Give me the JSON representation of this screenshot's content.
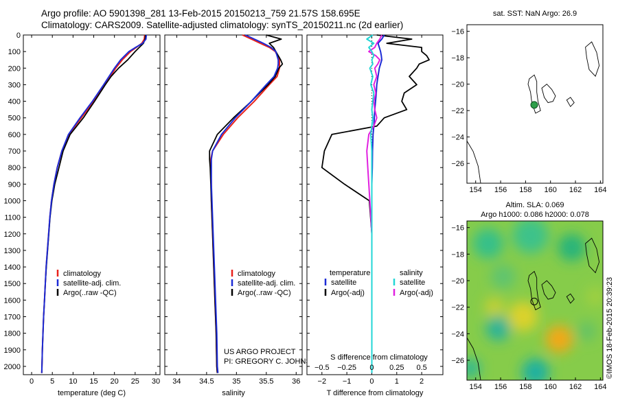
{
  "header": {
    "title_line1": "Argo profile: AO 5901398_281 13-Feb-2015 20150213_759 21.57S 158.695E",
    "title_line2": "Climatology: CARS2009. Satellite-adjusted climatology: synTS_20150211.nc (2d earlier)"
  },
  "credit": {
    "project": "US ARGO PROJECT",
    "pi": "PI: GREGORY C. JOHNSON",
    "imos": "©IMOS 18-Feb-2015 20:39:23"
  },
  "colors": {
    "climatology": "#e8201a",
    "satellite": "#1c2bd6",
    "argo": "#000000",
    "salinity_satellite": "#22d6d6",
    "salinity_argo": "#e020e0"
  },
  "chart_data": [
    {
      "type": "line",
      "id": "temperature",
      "xlabel": "temperature (deg C)",
      "ylabel": "",
      "xlim": [
        -2,
        31
      ],
      "ylim": [
        2050,
        0
      ],
      "xticks": [
        0,
        5,
        10,
        15,
        20,
        25,
        30
      ],
      "yticks": [
        0,
        100,
        200,
        300,
        400,
        500,
        600,
        700,
        800,
        900,
        1000,
        1100,
        1200,
        1300,
        1400,
        1500,
        1600,
        1700,
        1800,
        1900,
        2000
      ],
      "legend": [
        "climatology",
        "satellite-adj. clim.",
        "Argo(..raw -QC)"
      ],
      "legend_location": "lower-left",
      "depth": [
        0,
        25,
        50,
        75,
        100,
        150,
        200,
        250,
        300,
        400,
        500,
        600,
        700,
        800,
        900,
        1000,
        1100,
        1200,
        1300,
        1400,
        1500,
        1600,
        1700,
        1800,
        1900,
        2000,
        2040
      ],
      "series": [
        {
          "name": "climatology",
          "values": [
            27.3,
            27.2,
            26.6,
            25.3,
            23.9,
            21.9,
            20.3,
            19.0,
            17.7,
            15.0,
            12.0,
            9.0,
            7.3,
            6.2,
            5.4,
            4.8,
            4.4,
            4.1,
            3.8,
            3.5,
            3.3,
            3.1,
            2.9,
            2.75,
            2.6,
            2.5,
            2.45
          ]
        },
        {
          "name": "satellite-adj. clim.",
          "values": [
            27.7,
            27.6,
            26.8,
            25.1,
            23.5,
            21.5,
            20.0,
            18.7,
            17.4,
            14.7,
            11.7,
            8.9,
            7.3,
            6.2,
            5.4,
            4.8,
            4.4,
            4.1,
            3.8,
            3.5,
            3.3,
            3.1,
            2.9,
            2.75,
            2.6,
            2.5,
            2.45
          ]
        },
        {
          "name": "Argo(..raw -QC)",
          "values": [
            27.5,
            27.4,
            27.0,
            26.0,
            25.0,
            23.2,
            21.0,
            19.2,
            17.8,
            15.2,
            12.5,
            9.3,
            7.6,
            6.6,
            5.6,
            4.9,
            4.45,
            4.15,
            3.85,
            3.55,
            3.3,
            3.1,
            2.9,
            2.75,
            2.6,
            2.5,
            2.45
          ]
        }
      ]
    },
    {
      "type": "line",
      "id": "salinity",
      "xlabel": "salinity",
      "ylabel": "",
      "xlim": [
        33.8,
        36.1
      ],
      "ylim": [
        2050,
        0
      ],
      "xticks": [
        34,
        34.5,
        35,
        35.5,
        36
      ],
      "legend": [
        "climatology",
        "satellite-adj. clim.",
        "Argo(..raw -QC)"
      ],
      "legend_location": "lower-left",
      "depth": [
        0,
        25,
        50,
        75,
        100,
        150,
        175,
        200,
        250,
        300,
        400,
        500,
        600,
        700,
        750,
        800,
        900,
        1000,
        1200,
        1400,
        1600,
        1800,
        2000,
        2040
      ],
      "series": [
        {
          "name": "climatology",
          "values": [
            35.1,
            35.25,
            35.4,
            35.55,
            35.65,
            35.72,
            35.72,
            35.72,
            35.68,
            35.55,
            35.3,
            35.02,
            34.78,
            34.6,
            34.57,
            34.57,
            34.58,
            34.58,
            34.6,
            34.62,
            34.64,
            34.66,
            34.67,
            34.68
          ]
        },
        {
          "name": "satellite-adj. clim.",
          "values": [
            35.15,
            35.3,
            35.45,
            35.58,
            35.66,
            35.7,
            35.7,
            35.69,
            35.63,
            35.5,
            35.25,
            34.98,
            34.75,
            34.6,
            34.58,
            34.58,
            34.58,
            34.59,
            34.61,
            34.63,
            34.65,
            34.67,
            34.68,
            34.69
          ]
        },
        {
          "name": "Argo(..raw -QC)",
          "values": [
            35.5,
            35.75,
            35.55,
            35.62,
            35.66,
            35.74,
            35.77,
            35.71,
            35.65,
            35.53,
            35.25,
            34.95,
            34.68,
            34.55,
            34.55,
            34.56,
            34.57,
            34.58,
            34.6,
            34.62,
            34.64,
            34.66,
            34.67,
            34.68
          ]
        }
      ]
    },
    {
      "type": "line",
      "id": "difference",
      "xlabel": "T difference from climatology",
      "xlabel2": "S difference from climatology",
      "xlim": [
        -2.6,
        2.85
      ],
      "ylim": [
        2050,
        0
      ],
      "xticks_T": [
        -2,
        -1,
        0,
        1,
        2
      ],
      "xticks_S": [
        -0.5,
        -0.25,
        0,
        0.25,
        0.5
      ],
      "s_scale": 4,
      "legend_temperature_header": "temperature",
      "legend_salinity_header": "salinity",
      "legend": [
        "satellite",
        "Argo(-adj)",
        "satellite",
        "Argo(-adj)"
      ],
      "legend_location": "lower",
      "depth": [
        0,
        25,
        50,
        75,
        100,
        125,
        150,
        175,
        200,
        250,
        300,
        350,
        400,
        450,
        500,
        550,
        600,
        700,
        800,
        900,
        1000,
        1200,
        1400,
        1600,
        1800,
        2000,
        2040
      ],
      "series": [
        {
          "name": "satellite",
          "quantity": "temperature",
          "values": [
            0.5,
            0.4,
            0.25,
            0.3,
            0.35,
            0.38,
            0.4,
            0.35,
            0.3,
            0.25,
            0.2,
            0.18,
            0.15,
            0.12,
            0.1,
            0.08,
            0.05,
            0.03,
            0.02,
            0.0,
            0.0,
            0.0,
            0.0,
            0.0,
            0.0,
            0.0,
            0.0
          ]
        },
        {
          "name": "Argo(-adj)",
          "quantity": "temperature",
          "values": [
            0.2,
            1.6,
            0.6,
            2.0,
            2.0,
            2.2,
            2.3,
            1.9,
            1.8,
            1.5,
            1.8,
            1.3,
            1.2,
            1.4,
            0.5,
            0.2,
            -1.6,
            -1.9,
            -2.0,
            -1.1,
            -0.1,
            0.0,
            0.0,
            0.0,
            0.0,
            0.0,
            0.0
          ]
        },
        {
          "name": "satellite",
          "quantity": "salinity",
          "values": [
            0.01,
            -0.05,
            0.02,
            -0.03,
            0.0,
            0.02,
            0.0,
            0.01,
            -0.02,
            0.01,
            -0.01,
            0.02,
            0.01,
            0.0,
            0.01,
            0.0,
            -0.01,
            0.0,
            0.0,
            0.0,
            0.0,
            0.0,
            0.0,
            0.0,
            0.0,
            0.0,
            0.0
          ]
        },
        {
          "name": "Argo(-adj)",
          "quantity": "salinity",
          "values": [
            0.1,
            0.08,
            0.05,
            0.03,
            -0.03,
            0.04,
            0.08,
            0.06,
            0.03,
            0.05,
            0.02,
            0.04,
            0.02,
            0.03,
            0.05,
            0.02,
            -0.03,
            -0.05,
            -0.04,
            -0.03,
            -0.02,
            0.0,
            0.0,
            0.0,
            0.0,
            0.0,
            0.0
          ]
        }
      ]
    },
    {
      "type": "scatter",
      "id": "map_sst",
      "title": "sat. SST: NaN Argo: 26.9",
      "xlim": [
        153.3,
        164.2
      ],
      "ylim": [
        -27.5,
        -15.5
      ],
      "xticks": [
        154,
        156,
        158,
        160,
        162,
        164
      ],
      "yticks": [
        -16,
        -18,
        -20,
        -22,
        -24,
        -26
      ],
      "points": [
        {
          "x": 158.695,
          "y": -21.57
        }
      ]
    },
    {
      "type": "heatmap",
      "id": "map_sla",
      "title": "Altim. SLA: 0.069",
      "title2": "Argo h1000: 0.086 h2000: 0.078",
      "xlim": [
        153.3,
        164.2
      ],
      "ylim": [
        -27.5,
        -15.5
      ],
      "xticks": [
        154,
        156,
        158,
        160,
        162,
        164
      ],
      "yticks": [
        -16,
        -18,
        -20,
        -22,
        -24,
        -26
      ],
      "points": [
        {
          "x": 158.695,
          "y": -21.57
        }
      ]
    }
  ]
}
